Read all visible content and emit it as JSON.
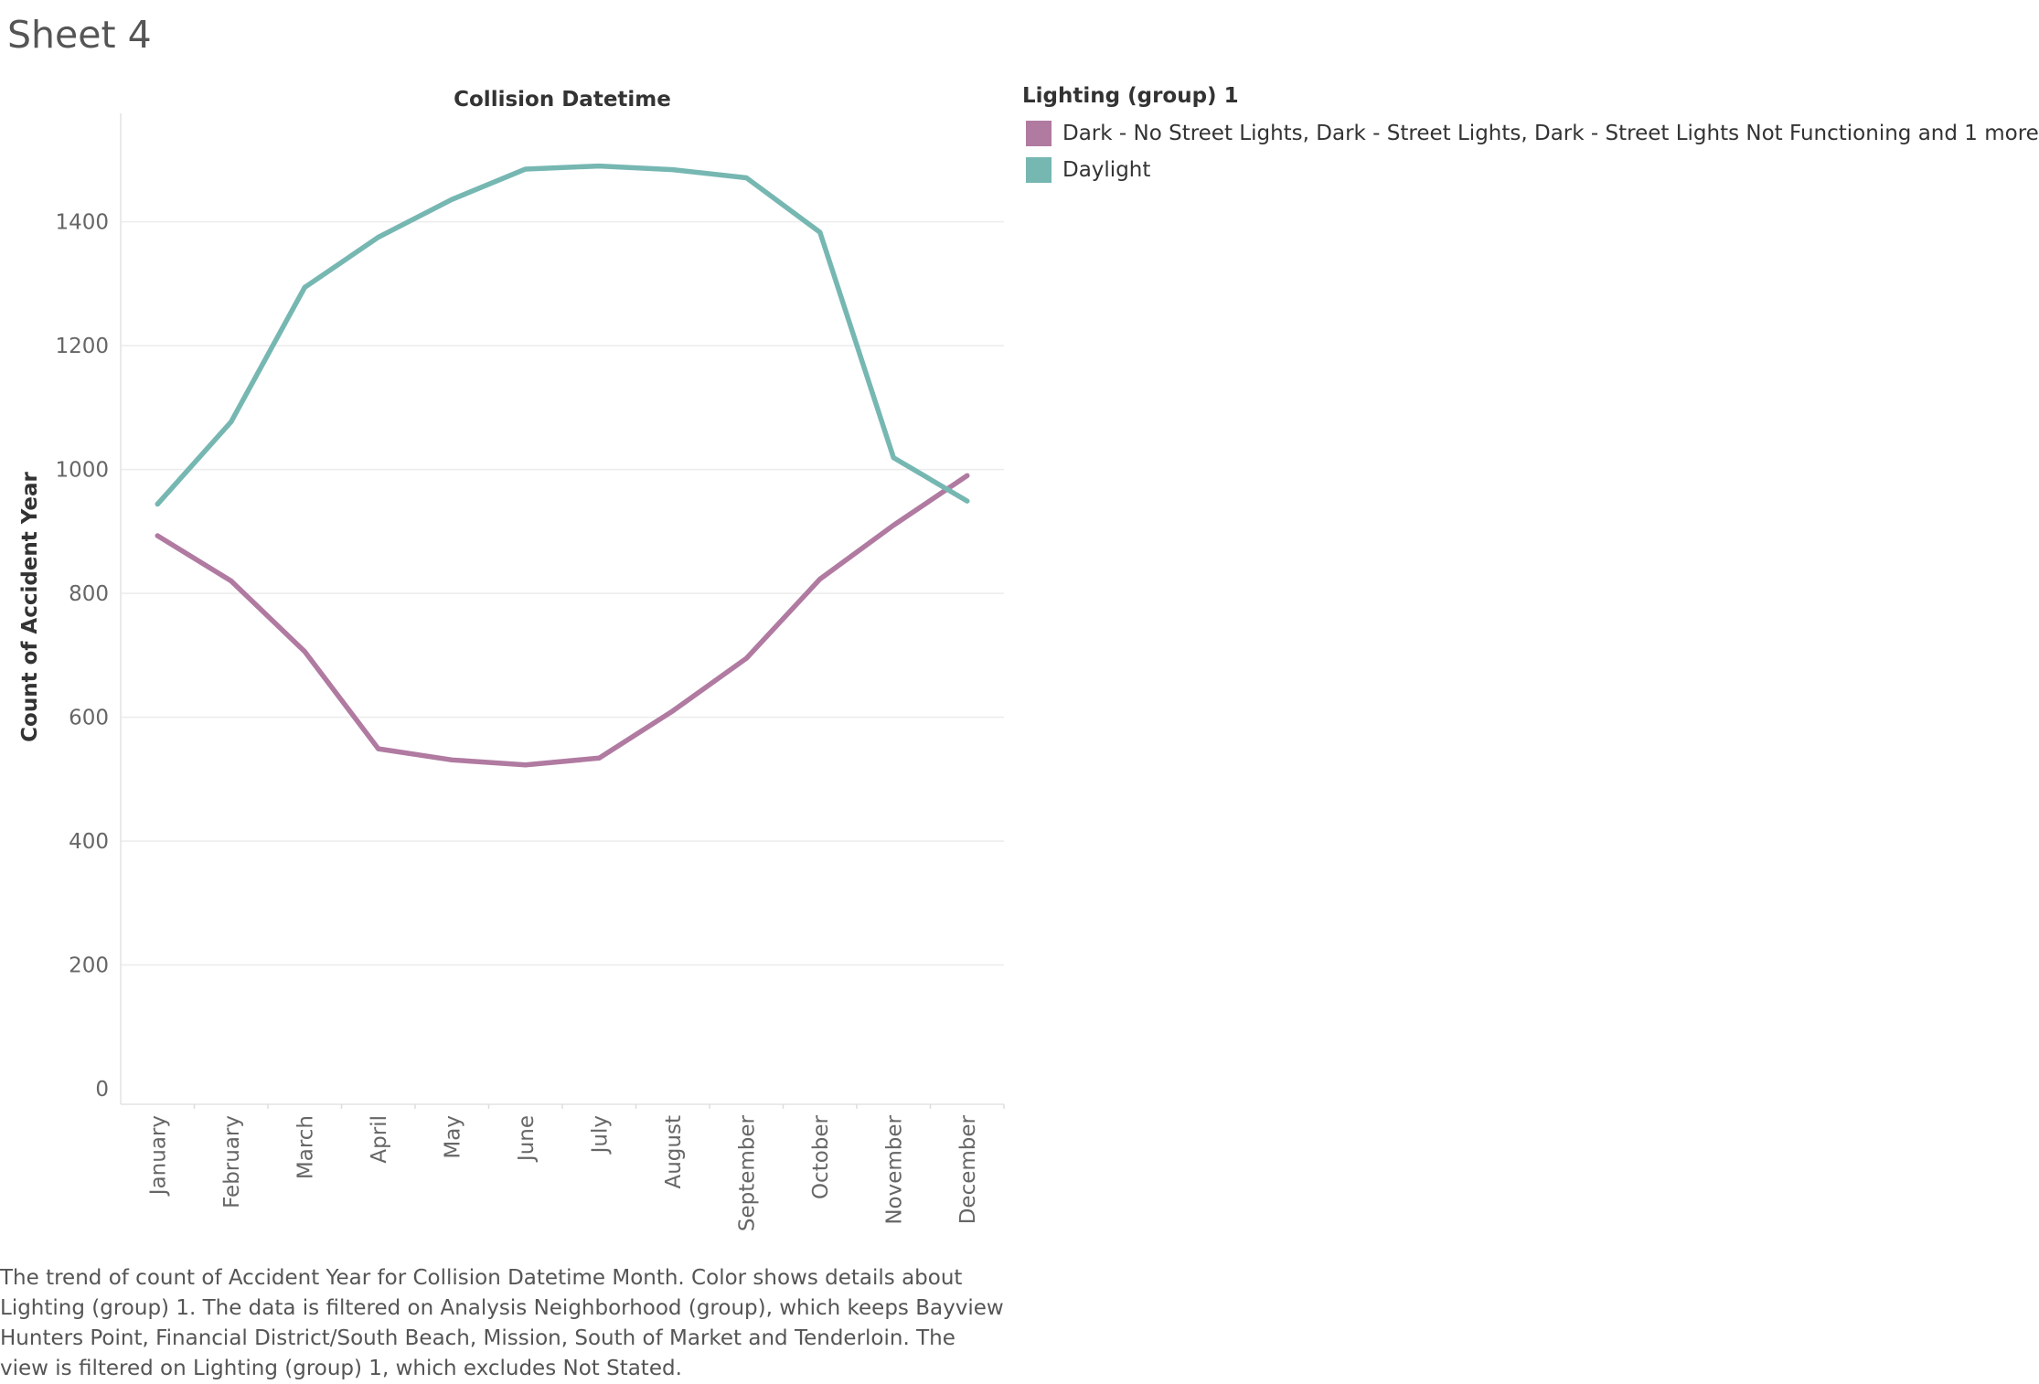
{
  "sheet": {
    "title": "Sheet 4"
  },
  "chart_data": {
    "type": "line",
    "title": "Collision Datetime",
    "xlabel": "",
    "ylabel": "Count of Accident Year",
    "categories": [
      "January",
      "February",
      "March",
      "April",
      "May",
      "June",
      "July",
      "August",
      "September",
      "October",
      "November",
      "December"
    ],
    "yticks": [
      0,
      200,
      400,
      600,
      800,
      1000,
      1200,
      1400
    ],
    "ylim": [
      -25,
      1575
    ],
    "grid": true,
    "legend_position": "right",
    "series": [
      {
        "name": "Dark - No Street Lights, Dark - Street Lights, Dark - Street Lights Not Functioning and 1 more",
        "color": "#b07aa1",
        "values": [
          893,
          820,
          706,
          549,
          531,
          523,
          534,
          610,
          695,
          823,
          910,
          990
        ]
      },
      {
        "name": "Daylight",
        "color": "#76b7b2",
        "values": [
          944,
          1077,
          1294,
          1375,
          1436,
          1485,
          1490,
          1484,
          1471,
          1383,
          1019,
          949
        ]
      }
    ]
  },
  "legend": {
    "title": "Lighting (group) 1"
  },
  "caption": {
    "lines": [
      "The trend of count of Accident Year for Collision Datetime Month.  Color shows details about",
      "Lighting (group) 1. The data is filtered on Analysis Neighborhood (group), which keeps Bayview",
      "Hunters Point, Financial District/South Beach, Mission, South of Market and Tenderloin. The",
      "view is filtered on Lighting (group) 1, which excludes Not Stated."
    ]
  }
}
